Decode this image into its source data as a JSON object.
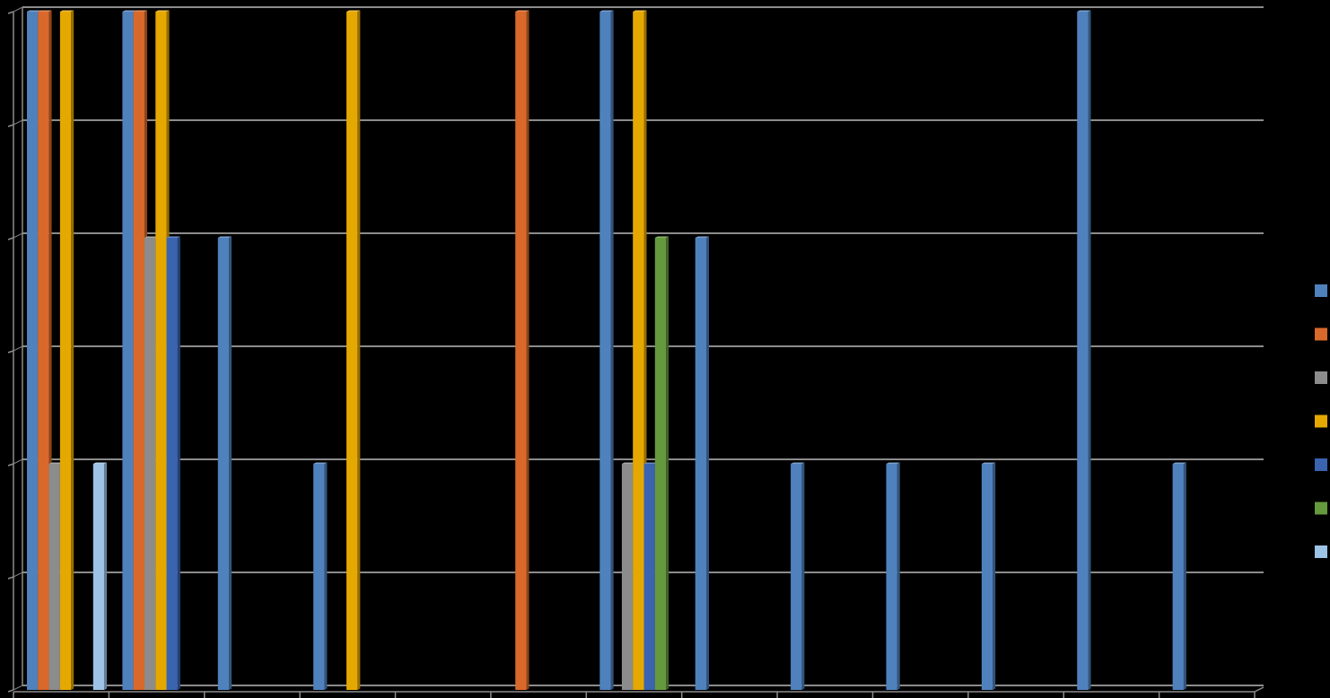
{
  "chart_data": {
    "type": "bar",
    "style": "3d-clustered-column",
    "title": "",
    "xlabel": "",
    "ylabel": "",
    "ylim": [
      0,
      3
    ],
    "y_gridlines": [
      0,
      0.5,
      1,
      1.5,
      2,
      2.5,
      3
    ],
    "grid": true,
    "legend_position": "right",
    "categories": [
      "",
      "",
      "",
      "",
      "",
      "",
      "",
      "",
      "",
      "",
      "",
      "",
      ""
    ],
    "series": [
      {
        "name": "",
        "color": "#4F81BD",
        "values": [
          3,
          3,
          2,
          1,
          0,
          0,
          3,
          2,
          1,
          1,
          1,
          3,
          1
        ]
      },
      {
        "name": "",
        "color": "#D9692A",
        "values": [
          3,
          3,
          0,
          0,
          0,
          3,
          0,
          0,
          0,
          0,
          0,
          0,
          0
        ]
      },
      {
        "name": "",
        "color": "#8C8C8C",
        "values": [
          1,
          2,
          0,
          0,
          0,
          0,
          1,
          0,
          0,
          0,
          0,
          0,
          0
        ]
      },
      {
        "name": "",
        "color": "#E5A800",
        "values": [
          3,
          3,
          0,
          3,
          0,
          0,
          3,
          0,
          0,
          0,
          0,
          0,
          0
        ]
      },
      {
        "name": "",
        "color": "#3A64B0",
        "values": [
          0,
          2,
          0,
          0,
          0,
          0,
          1,
          0,
          0,
          0,
          0,
          0,
          0
        ]
      },
      {
        "name": "",
        "color": "#65993D",
        "values": [
          0,
          0,
          0,
          0,
          0,
          0,
          2,
          0,
          0,
          0,
          0,
          0,
          0
        ]
      },
      {
        "name": "",
        "color": "#9DC3E6",
        "values": [
          1,
          0,
          0,
          0,
          0,
          0,
          0,
          0,
          0,
          0,
          0,
          0,
          0
        ]
      }
    ]
  }
}
